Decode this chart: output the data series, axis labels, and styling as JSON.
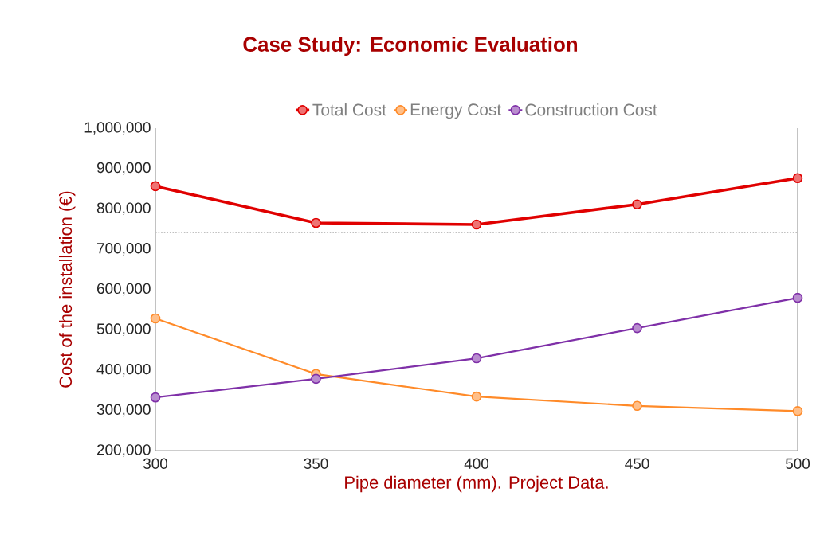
{
  "chart_data": {
    "type": "line",
    "title": "Case Study: Economic Evaluation",
    "xlabel": "Pipe diameter (mm). Project Data.",
    "ylabel": "Cost of the installation (€)",
    "x": [
      300,
      350,
      400,
      450,
      500
    ],
    "series": [
      {
        "name": "Total Cost",
        "color": "#e00000",
        "values": [
          856000,
          765000,
          761000,
          811000,
          876000
        ]
      },
      {
        "name": "Energy Cost",
        "color": "#ff8a28",
        "values": [
          528000,
          390000,
          334000,
          311000,
          298000
        ]
      },
      {
        "name": "Construction Cost",
        "color": "#7f30a8",
        "values": [
          332000,
          378000,
          429000,
          504000,
          579000
        ]
      }
    ],
    "xlim": [
      300,
      500
    ],
    "xticks": [
      300,
      350,
      400,
      450,
      500
    ],
    "ylim": [
      200000,
      1000000
    ],
    "yticks": [
      {
        "value": 200000,
        "label": "200,000"
      },
      {
        "value": 300000,
        "label": "300,000"
      },
      {
        "value": 400000,
        "label": "400,000"
      },
      {
        "value": 500000,
        "label": "500,000"
      },
      {
        "value": 600000,
        "label": "600,000"
      },
      {
        "value": 700000,
        "label": "700,000"
      },
      {
        "value": 800000,
        "label": "800,000"
      },
      {
        "value": 900000,
        "label": "900,000"
      },
      {
        "value": 1000000,
        "label": "1,000,000"
      }
    ],
    "ref_lines": [
      {
        "axis": "y",
        "value": 741000,
        "color": "#bfbfbf",
        "line_style": "dotted"
      }
    ],
    "grid": false,
    "legend": "top",
    "marker": "circle",
    "line_style": "solid"
  }
}
